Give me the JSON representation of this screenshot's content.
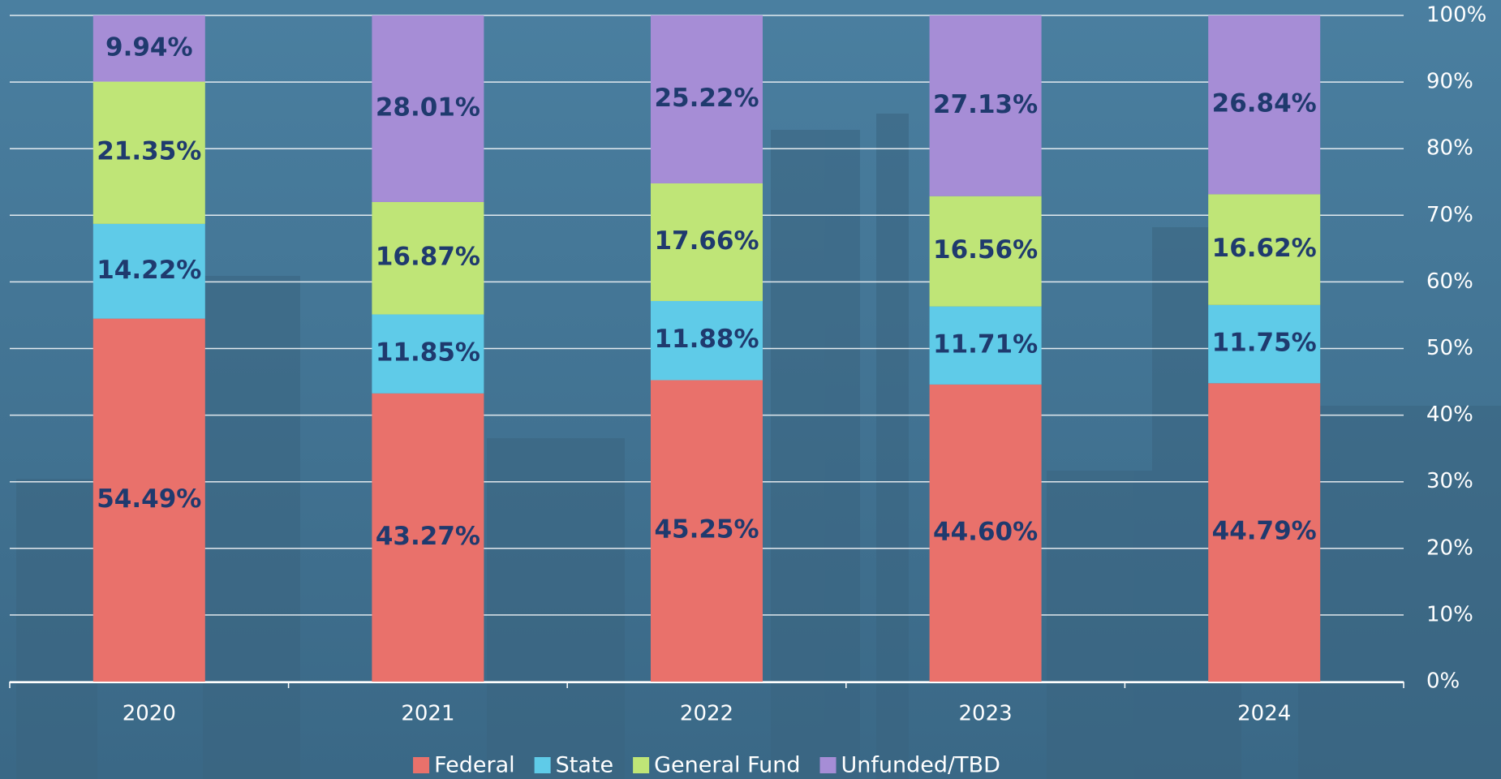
{
  "chart_data": {
    "type": "stacked_bar",
    "categories": [
      "2020",
      "2021",
      "2022",
      "2023",
      "2024"
    ],
    "series": [
      {
        "name": "Federal",
        "color": "#e9716b",
        "values": [
          54.49,
          43.27,
          45.25,
          44.6,
          44.79
        ],
        "value_labels": [
          "54.49%",
          "43.27%",
          "45.25%",
          "44.60%",
          "44.79%"
        ]
      },
      {
        "name": "State",
        "color": "#5fcbe8",
        "values": [
          14.22,
          11.85,
          11.88,
          11.71,
          11.75
        ],
        "value_labels": [
          "14.22%",
          "11.85%",
          "11.88%",
          "11.71%",
          "11.75%"
        ]
      },
      {
        "name": "General Fund",
        "color": "#bfe577",
        "values": [
          21.35,
          16.87,
          17.66,
          16.56,
          16.62
        ],
        "value_labels": [
          "21.35%",
          "16.87%",
          "17.66%",
          "16.56%",
          "16.62%"
        ]
      },
      {
        "name": "Unfunded/TBD",
        "color": "#a68dd6",
        "values": [
          9.94,
          28.01,
          25.22,
          27.13,
          26.84
        ],
        "value_labels": [
          "9.94%",
          "28.01%",
          "25.22%",
          "27.13%",
          "26.84%"
        ]
      }
    ],
    "ylim": [
      0,
      100
    ],
    "yticks": [
      {
        "value": 0,
        "label": "0%"
      },
      {
        "value": 10,
        "label": "10%"
      },
      {
        "value": 20,
        "label": "20%"
      },
      {
        "value": 30,
        "label": "30%"
      },
      {
        "value": 40,
        "label": "40%"
      },
      {
        "value": 50,
        "label": "50%"
      },
      {
        "value": 60,
        "label": "60%"
      },
      {
        "value": 70,
        "label": "70%"
      },
      {
        "value": 80,
        "label": "80%"
      },
      {
        "value": 90,
        "label": "90%"
      },
      {
        "value": 100,
        "label": "100%"
      }
    ],
    "grid": true,
    "legend": "bottom"
  }
}
